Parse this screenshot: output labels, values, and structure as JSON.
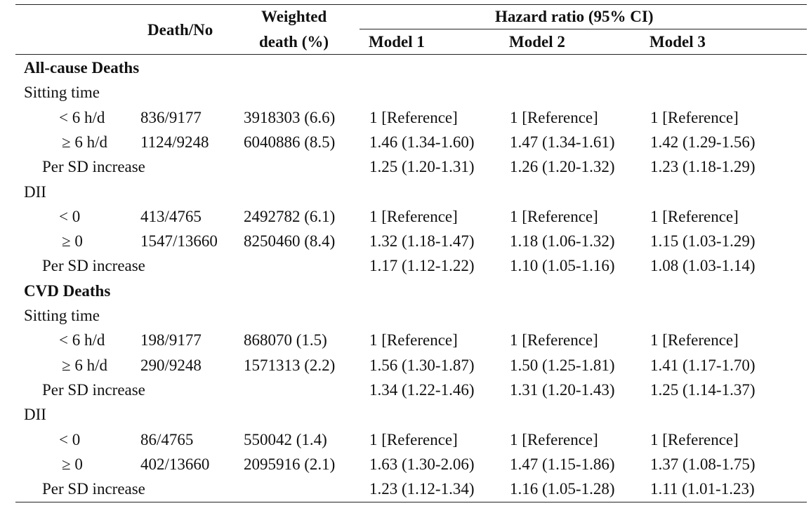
{
  "header": {
    "death_no": "Death/No",
    "weighted_line1": "Weighted",
    "weighted_line2": "death (%)",
    "hazard_ratio": "Hazard ratio (95% CI)",
    "model1": "Model 1",
    "model2": "Model 2",
    "model3": "Model 3"
  },
  "sections": [
    {
      "title": "All-cause Deaths",
      "groups": [
        {
          "label": "Sitting time",
          "rows": [
            {
              "label": "< 6 h/d",
              "death_no": "836/9177",
              "weighted": "3918303 (6.6)",
              "m1": "1 [Reference]",
              "m2": "1 [Reference]",
              "m3": "1 [Reference]"
            },
            {
              "label": "≥ 6 h/d",
              "death_no": "1124/9248",
              "weighted": "6040886 (8.5)",
              "m1": "1.46 (1.34-1.60)",
              "m2": "1.47 (1.34-1.61)",
              "m3": "1.42 (1.29-1.56)"
            },
            {
              "label": "Per SD increase",
              "death_no": "",
              "weighted": "",
              "m1": "1.25 (1.20-1.31)",
              "m2": "1.26 (1.20-1.32)",
              "m3": "1.23 (1.18-1.29)"
            }
          ]
        },
        {
          "label": "DII",
          "rows": [
            {
              "label": "< 0",
              "death_no": "413/4765",
              "weighted": "2492782 (6.1)",
              "m1": "1 [Reference]",
              "m2": "1 [Reference]",
              "m3": "1 [Reference]"
            },
            {
              "label": "≥ 0",
              "death_no": "1547/13660",
              "weighted": "8250460 (8.4)",
              "m1": "1.32 (1.18-1.47)",
              "m2": "1.18 (1.06-1.32)",
              "m3": "1.15 (1.03-1.29)"
            },
            {
              "label": "Per SD increase",
              "death_no": "",
              "weighted": "",
              "m1": "1.17 (1.12-1.22)",
              "m2": "1.10 (1.05-1.16)",
              "m3": "1.08 (1.03-1.14)"
            }
          ]
        }
      ]
    },
    {
      "title": "CVD Deaths",
      "groups": [
        {
          "label": "Sitting time",
          "rows": [
            {
              "label": "< 6 h/d",
              "death_no": "198/9177",
              "weighted": "868070 (1.5)",
              "m1": "1 [Reference]",
              "m2": "1 [Reference]",
              "m3": "1 [Reference]"
            },
            {
              "label": "≥ 6 h/d",
              "death_no": "290/9248",
              "weighted": "1571313 (2.2)",
              "m1": "1.56 (1.30-1.87)",
              "m2": "1.50 (1.25-1.81)",
              "m3": "1.41 (1.17-1.70)"
            },
            {
              "label": "Per SD increase",
              "death_no": "",
              "weighted": "",
              "m1": "1.34 (1.22-1.46)",
              "m2": "1.31 (1.20-1.43)",
              "m3": "1.25 (1.14-1.37)"
            }
          ]
        },
        {
          "label": "DII",
          "rows": [
            {
              "label": "< 0",
              "death_no": "86/4765",
              "weighted": "550042 (1.4)",
              "m1": "1 [Reference]",
              "m2": "1 [Reference]",
              "m3": "1 [Reference]"
            },
            {
              "label": "≥ 0",
              "death_no": "402/13660",
              "weighted": "2095916 (2.1)",
              "m1": "1.63 (1.30-2.06)",
              "m2": "1.47 (1.15-1.86)",
              "m3": "1.37 (1.08-1.75)"
            },
            {
              "label": "Per SD increase",
              "death_no": "",
              "weighted": "",
              "m1": "1.23 (1.12-1.34)",
              "m2": "1.16 (1.05-1.28)",
              "m3": "1.11 (1.01-1.23)"
            }
          ]
        }
      ]
    }
  ]
}
